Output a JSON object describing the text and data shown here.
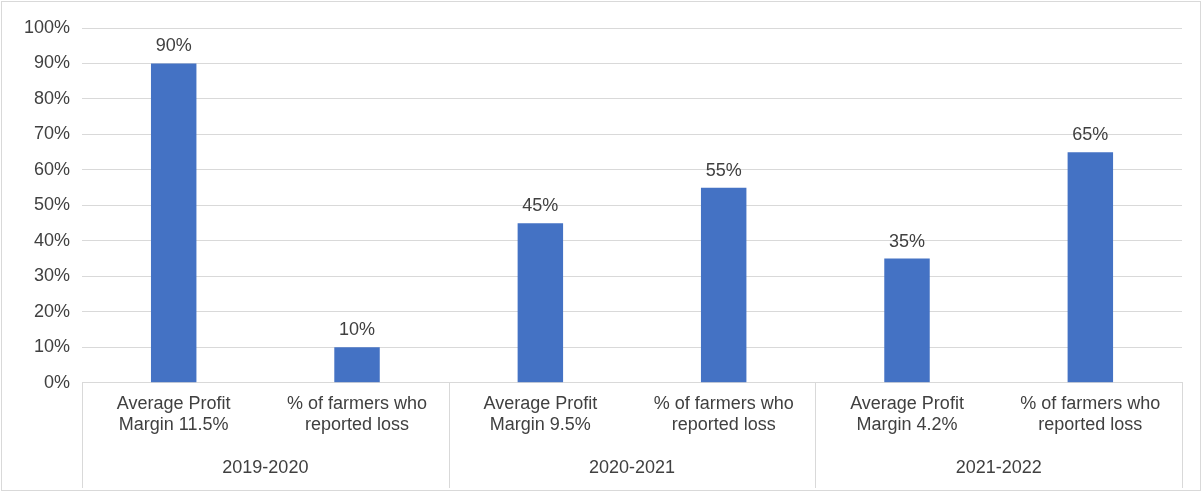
{
  "chart_data": {
    "type": "bar",
    "categories": [
      "Average Profit Margin 11.5%",
      "% of farmers who reported loss",
      "Average Profit Margin 9.5%",
      "% of farmers who reported loss",
      "Average Profit Margin 4.2%",
      "% of farmers who reported loss"
    ],
    "values": [
      90,
      10,
      45,
      55,
      35,
      65
    ],
    "value_labels": [
      "90%",
      "10%",
      "45%",
      "55%",
      "35%",
      "65%"
    ],
    "color": "#4472c4",
    "ylim": [
      0,
      100
    ],
    "yticks": [
      {
        "value": 0,
        "label": "0%"
      },
      {
        "value": 10,
        "label": "10%"
      },
      {
        "value": 20,
        "label": "20%"
      },
      {
        "value": 30,
        "label": "30%"
      },
      {
        "value": 40,
        "label": "40%"
      },
      {
        "value": 50,
        "label": "50%"
      },
      {
        "value": 60,
        "label": "60%"
      },
      {
        "value": 70,
        "label": "70%"
      },
      {
        "value": 80,
        "label": "80%"
      },
      {
        "value": 90,
        "label": "90%"
      },
      {
        "value": 100,
        "label": "100%"
      }
    ],
    "grid": "y",
    "annotations": [
      "2019-2020",
      "2020-2021",
      "2021-2022"
    ]
  }
}
